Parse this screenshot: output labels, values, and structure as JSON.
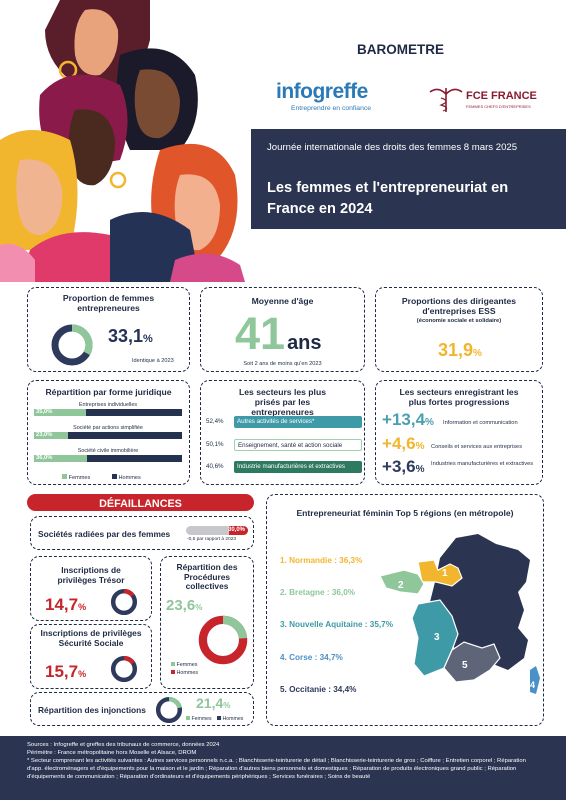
{
  "header": {
    "barometre": "BAROMETRE",
    "infogreffe_logo": "infogreffe",
    "infogreffe_tagline": "Entreprendre en confiance",
    "fce_logo": "FCE FRANCE",
    "fce_tagline": "FEMMES CHEFS D'ENTREPRISES",
    "event": "Journée internationale des droits des femmes 8 mars 2025",
    "title": "Les femmes et l'entrepreneuriat en France en 2024"
  },
  "card_proportion": {
    "title": "Proportion de femmes entrepreneures",
    "value": "33,1",
    "unit": "%",
    "note": "Identique à 2023",
    "share": 0.331
  },
  "card_age": {
    "title": "Moyenne d'âge",
    "value": "41",
    "unit": "ans",
    "note": "Soit 2 ans de moins qu'en 2023"
  },
  "card_ess": {
    "title": "Proportions des dirigeantes d'entreprises ESS",
    "subtitle": "(économie sociale et solidaire)",
    "value": "31,9",
    "unit": "%"
  },
  "card_forme": {
    "title": "Répartition par forme juridique",
    "rows": [
      {
        "label": "Entreprises individuelles",
        "value": "35,0%",
        "share": 0.35
      },
      {
        "label": "Société par actions simplifiée",
        "value": "23,0%",
        "share": 0.23
      },
      {
        "label": "Société civile immobilière",
        "value": "36,0%",
        "share": 0.36
      }
    ],
    "legend_f": "Femmes",
    "legend_h": "Hommes"
  },
  "card_secteurs": {
    "title": "Les secteurs les plus prisés par les entrepreneures",
    "rows": [
      {
        "value": "52,4%",
        "label": "Autres activités de services*",
        "style": "teal"
      },
      {
        "value": "50,1%",
        "label": "Enseignement, santé et action sociale",
        "style": "mint"
      },
      {
        "value": "40,6%",
        "label": "Industrie manufacturières et extractives",
        "style": "green"
      }
    ]
  },
  "card_progressions": {
    "title": "Les secteurs enregistrant les plus fortes progressions",
    "rows": [
      {
        "sign": "+",
        "value": "13,4",
        "unit": "%",
        "label": "Information et communication",
        "color": "#4a9fb0"
      },
      {
        "sign": "+",
        "value": "4,6",
        "unit": "%",
        "label": "Conseils et services aux entreprises",
        "color": "#f2b62e"
      },
      {
        "sign": "+",
        "value": "3,6",
        "unit": "%",
        "label": "Industries manufacturières et extractives",
        "color": "#2e3a5c"
      }
    ]
  },
  "defaillances": {
    "banner": "DÉFAILLANCES",
    "radiees": {
      "title": "Sociétés radiées par des femmes",
      "value": "30,0%",
      "note": "-0,5 par rapport à 2023",
      "share": 0.3
    },
    "tresor": {
      "title": "Inscriptions de privilèges Trésor",
      "value": "14,7",
      "unit": "%",
      "share": 0.147
    },
    "secu": {
      "title": "Inscriptions de privilèges Sécurité Sociale",
      "value": "15,7",
      "unit": "%",
      "share": 0.157
    },
    "procedures": {
      "title": "Répartition des Procédures collectives",
      "value": "23,6",
      "unit": "%",
      "share": 0.236,
      "legend_f": "Femmes",
      "legend_h": "Hommes"
    },
    "injonctions": {
      "title": "Répartition des injonctions",
      "value": "21,4",
      "unit": "%",
      "share": 0.214,
      "legend_f": "Femmes",
      "legend_h": "Hommes"
    }
  },
  "regions": {
    "title": "Entrepreneuriat féminin Top 5 régions (en métropole)",
    "items": [
      {
        "label": "1. Normandie : 36,3%",
        "color": "#f2b62e",
        "num": "1"
      },
      {
        "label": "2. Bretagne : 36,0%",
        "color": "#8fc79a",
        "num": "2"
      },
      {
        "label": "3. Nouvelle Aquitaine : 35,7%",
        "color": "#3f9aa8",
        "num": "3"
      },
      {
        "label": "4. Corse : 34,7%",
        "color": "#4a90c9",
        "num": "4"
      },
      {
        "label": "5. Occitanie : 34,4%",
        "color": "#2e3a5c",
        "num": "5"
      }
    ]
  },
  "footer": {
    "line1": "Sources : Infogreffe et greffes des tribunaux de commerce, données 2024",
    "line2": "Périmètre : France métropolitaine hors Moselle et Alsace, DROM",
    "line3": "* Secteur comprenant les activités suivantes : Autres services personnels n.c.a. ; Blanchisserie-teinturerie de détail ; Blanchisserie-teinturerie de gros ; Coiffure ; Entretien corporel ; Réparation d'app. électroménagers et d'équipements pour la maison et le jardin ; Réparation d'autres biens personnels et domestiques ; Réparation de produits électroniques grand public ; Réparation d'équipements de communication ; Réparation d'ordinateurs et d'équipements périphériques ; Services funéraires ; Soins de beauté"
  }
}
